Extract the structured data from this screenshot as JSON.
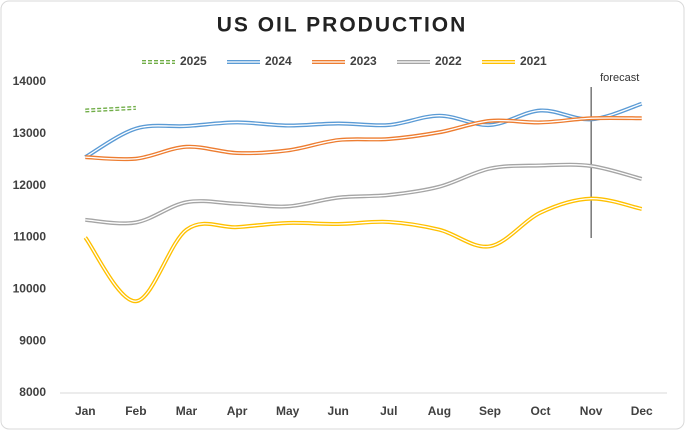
{
  "chart_data": {
    "type": "line",
    "title": "US OIL PRODUCTION",
    "categories": [
      "Jan",
      "Feb",
      "Mar",
      "Apr",
      "May",
      "Jun",
      "Jul",
      "Aug",
      "Sep",
      "Oct",
      "Nov",
      "Dec"
    ],
    "series": [
      {
        "name": "2025",
        "color": "#70ad47",
        "style": "dashed",
        "values": [
          13450,
          13500,
          null,
          null,
          null,
          null,
          null,
          null,
          null,
          null,
          null,
          null
        ]
      },
      {
        "name": "2024",
        "color": "#5b9bd5",
        "values": [
          12550,
          13100,
          13150,
          13220,
          13160,
          13200,
          13170,
          13350,
          13170,
          13450,
          13280,
          13580
        ]
      },
      {
        "name": "2023",
        "color": "#ed7d31",
        "values": [
          12550,
          12520,
          12750,
          12630,
          12680,
          12880,
          12900,
          13030,
          13250,
          13220,
          13300,
          13300
        ]
      },
      {
        "name": "2022",
        "color": "#a5a5a5",
        "values": [
          11340,
          11290,
          11680,
          11650,
          11600,
          11770,
          11820,
          11980,
          12330,
          12390,
          12380,
          12130
        ]
      },
      {
        "name": "2021",
        "color": "#ffc000",
        "values": [
          11000,
          9770,
          11150,
          11200,
          11280,
          11260,
          11300,
          11150,
          10830,
          11480,
          11750,
          11550
        ]
      }
    ],
    "ylim": [
      8000,
      14000
    ],
    "yticks": [
      8000,
      9000,
      10000,
      11000,
      12000,
      13000,
      14000
    ],
    "annotations": [
      {
        "text": "forecast",
        "x": "Nov"
      }
    ],
    "grid": false,
    "legend": "top"
  }
}
